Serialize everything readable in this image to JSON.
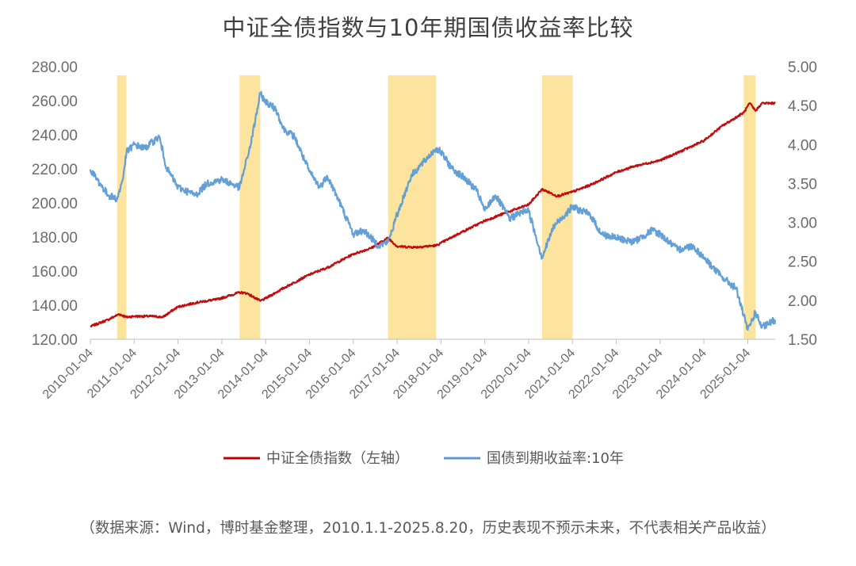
{
  "chart_data": {
    "type": "line",
    "title": "中证全债指数与10年期国债收益率比较",
    "y_left": {
      "ticks": [
        "120.00",
        "140.00",
        "160.00",
        "180.00",
        "200.00",
        "220.00",
        "240.00",
        "260.00",
        "280.00"
      ],
      "ylim": [
        120,
        280
      ]
    },
    "y_right": {
      "ticks": [
        "1.50",
        "2.00",
        "2.50",
        "3.00",
        "3.50",
        "4.00",
        "4.50",
        "5.00"
      ],
      "ylim": [
        1.5,
        5.0
      ]
    },
    "x_ticks": [
      "2010-01-04",
      "2011-01-04",
      "2012-01-04",
      "2013-01-04",
      "2014-01-04",
      "2015-01-04",
      "2016-01-04",
      "2017-01-04",
      "2018-01-04",
      "2019-01-04",
      "2020-01-04",
      "2021-01-04",
      "2022-01-04",
      "2023-01-04",
      "2024-01-04",
      "2025-01-04"
    ],
    "xlim": [
      "2010-01-04",
      "2025-08-20"
    ],
    "grid": false,
    "legend_position": "bottom",
    "highlight_periods": [
      {
        "start": "2010-08-15",
        "end": "2010-11-01"
      },
      {
        "start": "2013-06-01",
        "end": "2013-11-20"
      },
      {
        "start": "2016-10-20",
        "end": "2017-11-25"
      },
      {
        "start": "2020-04-25",
        "end": "2021-01-05"
      },
      {
        "start": "2024-12-01",
        "end": "2025-03-10"
      }
    ],
    "highlight_color": "#FCE49E",
    "series": [
      {
        "name": "中证全债指数（左轴）",
        "axis": "left",
        "color": "#C00000",
        "points": [
          [
            "2010-01-04",
            127.5
          ],
          [
            "2010-06-01",
            131.5
          ],
          [
            "2010-09-01",
            134.8
          ],
          [
            "2010-11-01",
            133.0
          ],
          [
            "2011-01-04",
            133.5
          ],
          [
            "2011-06-01",
            133.5
          ],
          [
            "2011-09-01",
            133.0
          ],
          [
            "2011-12-01",
            137.5
          ],
          [
            "2012-01-04",
            139.0
          ],
          [
            "2012-06-01",
            141.5
          ],
          [
            "2012-12-01",
            143.5
          ],
          [
            "2013-06-01",
            147.5
          ],
          [
            "2013-08-01",
            147.0
          ],
          [
            "2013-11-20",
            142.5
          ],
          [
            "2014-01-04",
            144.0
          ],
          [
            "2014-06-01",
            150.0
          ],
          [
            "2015-01-04",
            158.0
          ],
          [
            "2015-06-01",
            162.0
          ],
          [
            "2016-01-04",
            170.0
          ],
          [
            "2016-06-01",
            173.5
          ],
          [
            "2016-10-20",
            179.5
          ],
          [
            "2017-01-04",
            174.5
          ],
          [
            "2017-06-01",
            174.0
          ],
          [
            "2017-11-25",
            175.0
          ],
          [
            "2018-01-04",
            176.5
          ],
          [
            "2018-06-01",
            182.0
          ],
          [
            "2019-01-04",
            189.5
          ],
          [
            "2019-06-01",
            193.5
          ],
          [
            "2020-01-04",
            199.0
          ],
          [
            "2020-04-25",
            208.0
          ],
          [
            "2020-09-01",
            204.0
          ],
          [
            "2021-01-04",
            206.5
          ],
          [
            "2021-06-01",
            210.5
          ],
          [
            "2022-01-04",
            218.0
          ],
          [
            "2022-06-01",
            221.5
          ],
          [
            "2023-01-04",
            225.0
          ],
          [
            "2023-06-01",
            229.5
          ],
          [
            "2024-01-04",
            236.5
          ],
          [
            "2024-06-01",
            245.0
          ],
          [
            "2024-12-01",
            253.0
          ],
          [
            "2025-01-20",
            258.5
          ],
          [
            "2025-03-10",
            254.0
          ],
          [
            "2025-05-01",
            258.5
          ],
          [
            "2025-08-20",
            258.5
          ]
        ]
      },
      {
        "name": "国债到期收益率:10年",
        "axis": "right",
        "color": "#5B9BD5",
        "points": [
          [
            "2010-01-04",
            3.68
          ],
          [
            "2010-03-01",
            3.55
          ],
          [
            "2010-06-01",
            3.35
          ],
          [
            "2010-08-15",
            3.3
          ],
          [
            "2010-10-01",
            3.55
          ],
          [
            "2010-11-01",
            3.9
          ],
          [
            "2011-01-04",
            4.0
          ],
          [
            "2011-04-01",
            3.95
          ],
          [
            "2011-08-01",
            4.1
          ],
          [
            "2011-10-01",
            3.7
          ],
          [
            "2012-01-04",
            3.45
          ],
          [
            "2012-06-01",
            3.35
          ],
          [
            "2012-09-01",
            3.5
          ],
          [
            "2013-01-04",
            3.55
          ],
          [
            "2013-06-01",
            3.45
          ],
          [
            "2013-09-01",
            4.0
          ],
          [
            "2013-11-20",
            4.65
          ],
          [
            "2014-01-04",
            4.55
          ],
          [
            "2014-04-01",
            4.45
          ],
          [
            "2014-06-01",
            4.2
          ],
          [
            "2014-09-01",
            4.1
          ],
          [
            "2015-01-04",
            3.65
          ],
          [
            "2015-04-01",
            3.45
          ],
          [
            "2015-06-01",
            3.6
          ],
          [
            "2015-09-01",
            3.3
          ],
          [
            "2016-01-04",
            2.85
          ],
          [
            "2016-04-01",
            2.9
          ],
          [
            "2016-08-01",
            2.7
          ],
          [
            "2016-10-20",
            2.75
          ],
          [
            "2017-01-04",
            3.1
          ],
          [
            "2017-05-01",
            3.6
          ],
          [
            "2017-11-25",
            3.95
          ],
          [
            "2018-01-04",
            3.9
          ],
          [
            "2018-04-01",
            3.7
          ],
          [
            "2018-08-01",
            3.55
          ],
          [
            "2018-11-01",
            3.4
          ],
          [
            "2019-01-04",
            3.15
          ],
          [
            "2019-04-01",
            3.35
          ],
          [
            "2019-08-01",
            3.05
          ],
          [
            "2019-12-01",
            3.15
          ],
          [
            "2020-01-04",
            3.15
          ],
          [
            "2020-04-25",
            2.55
          ],
          [
            "2020-08-01",
            2.95
          ],
          [
            "2021-01-04",
            3.2
          ],
          [
            "2021-06-01",
            3.1
          ],
          [
            "2021-09-01",
            2.85
          ],
          [
            "2022-01-04",
            2.8
          ],
          [
            "2022-06-01",
            2.75
          ],
          [
            "2022-11-01",
            2.9
          ],
          [
            "2023-01-04",
            2.85
          ],
          [
            "2023-06-01",
            2.65
          ],
          [
            "2023-10-01",
            2.7
          ],
          [
            "2024-01-04",
            2.55
          ],
          [
            "2024-06-01",
            2.3
          ],
          [
            "2024-10-01",
            2.15
          ],
          [
            "2024-12-01",
            1.8
          ],
          [
            "2025-01-04",
            1.62
          ],
          [
            "2025-03-10",
            1.85
          ],
          [
            "2025-05-01",
            1.65
          ],
          [
            "2025-08-20",
            1.75
          ]
        ]
      }
    ]
  },
  "footnote": "（数据来源：Wind，博时基金整理，2010.1.1-2025.8.20，历史表现不预示未来，不代表相关产品收益）"
}
